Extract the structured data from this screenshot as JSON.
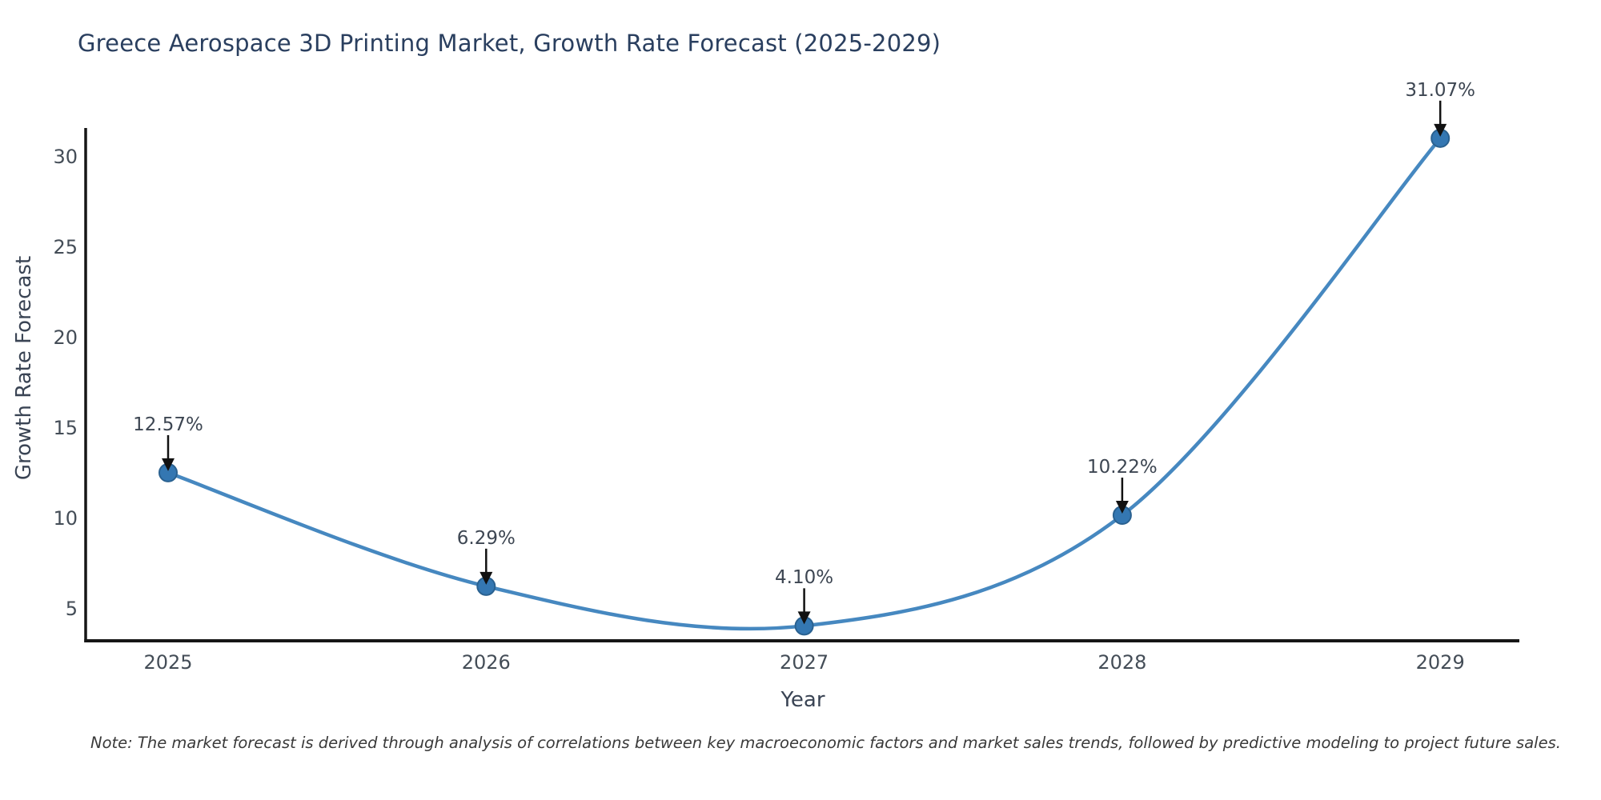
{
  "title": "Greece Aerospace 3D Printing Market, Growth Rate Forecast (2025-2029)",
  "note": "Note: The market forecast is derived through analysis of correlations between key macroeconomic factors and market sales trends, followed by predictive modeling to project future sales.",
  "chart_data": {
    "type": "line",
    "line_shape": "spline",
    "x": [
      2025,
      2026,
      2027,
      2028,
      2029
    ],
    "categories": [
      "2025",
      "2026",
      "2027",
      "2028",
      "2029"
    ],
    "series": [
      {
        "name": "Growth Rate Forecast",
        "values": [
          12.57,
          6.29,
          4.1,
          10.22,
          31.07
        ],
        "point_labels": [
          "12.57%",
          "6.29%",
          "4.10%",
          "10.22%",
          "31.07%"
        ]
      }
    ],
    "xlabel": "Year",
    "ylabel": "Growth Rate Forecast",
    "yticks": [
      5,
      10,
      15,
      20,
      25,
      30
    ],
    "ylim": [
      3.3,
      31.6
    ],
    "xlim": [
      2024.74,
      2029.25
    ],
    "grid": false,
    "legend_position": "none",
    "annotations_have_arrows": true
  },
  "colors": {
    "line": "#4688c0",
    "marker_fill": "#3477b2",
    "marker_stroke": "#2a6190",
    "axis_line": "#161616",
    "arrow": "#111111",
    "title_text": "#2a3f5f",
    "tick_text": "#444d57",
    "annotation_text": "#3d4652",
    "background": "#ffffff"
  }
}
